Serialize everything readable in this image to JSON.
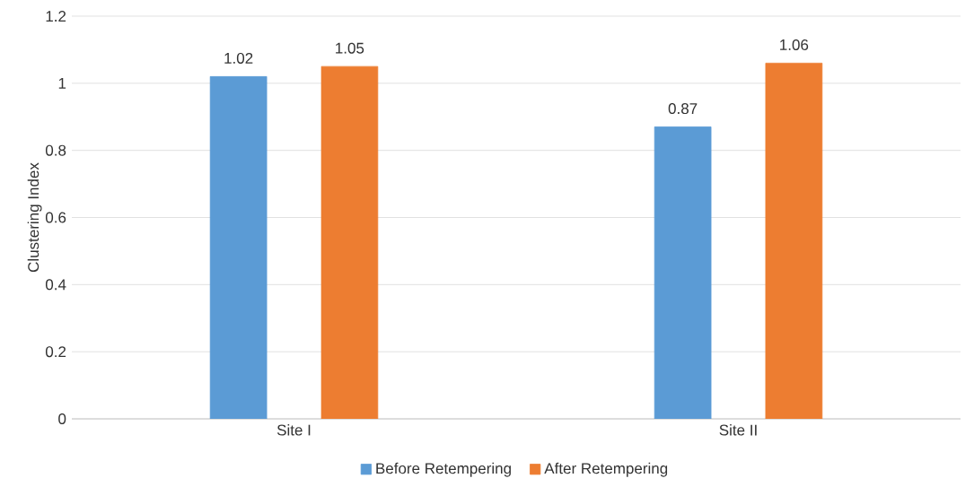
{
  "chart_data": {
    "type": "bar",
    "ylabel": "Clustering Index",
    "categories": [
      "Site I",
      "Site II"
    ],
    "series": [
      {
        "name": "Before Retempering",
        "color": "#5b9bd5",
        "values": [
          1.02,
          0.87
        ]
      },
      {
        "name": "After Retempering",
        "color": "#ed7d31",
        "values": [
          1.05,
          1.06
        ]
      }
    ],
    "ylim": [
      0,
      1.2
    ],
    "yticks": [
      0,
      0.2,
      0.4,
      0.6,
      0.8,
      1,
      1.2
    ],
    "grid": "y",
    "legend": "bottom",
    "data_labels": true
  }
}
